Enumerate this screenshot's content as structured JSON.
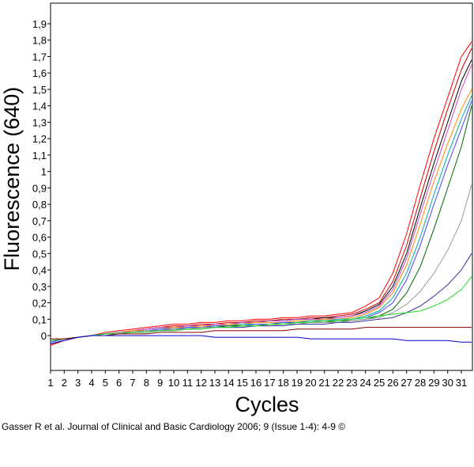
{
  "citation": "Gasser R et al. Journal of Clinical and Basic Cardiology 2006; 9 (Issue 1-4): 4-9 ©",
  "chart_data": {
    "type": "line",
    "title": "",
    "xlabel": "Cycles",
    "ylabel": "Fluorescence (640)",
    "xlim": [
      1,
      32
    ],
    "ylim": [
      -0.2,
      2.0
    ],
    "x": [
      1,
      2,
      3,
      4,
      5,
      6,
      7,
      8,
      9,
      10,
      11,
      12,
      13,
      14,
      15,
      16,
      17,
      18,
      19,
      20,
      21,
      22,
      23,
      24,
      25,
      26,
      27,
      28,
      29,
      30,
      31,
      32
    ],
    "xtick_labels": [
      "1",
      "2",
      "3",
      "4",
      "5",
      "6",
      "7",
      "8",
      "9",
      "10",
      "11",
      "12",
      "13",
      "14",
      "15",
      "16",
      "17",
      "18",
      "19",
      "20",
      "21",
      "22",
      "23",
      "24",
      "25",
      "26",
      "27",
      "28",
      "29",
      "30",
      "31"
    ],
    "ytick_labels": [
      "0",
      "0,1",
      "0,2",
      "0,3",
      "0,4",
      "0,5",
      "0,6",
      "0,7",
      "0,8",
      "0,9",
      "1",
      "1,1",
      "1,2",
      "1,3",
      "1,4",
      "1,5",
      "1,6",
      "1,7",
      "1,8",
      "1,9"
    ],
    "ytick_values": [
      0,
      0.1,
      0.2,
      0.3,
      0.4,
      0.5,
      0.6,
      0.7,
      0.8,
      0.9,
      1.0,
      1.1,
      1.2,
      1.3,
      1.4,
      1.5,
      1.6,
      1.7,
      1.8,
      1.9
    ],
    "grid": false,
    "legend": "none",
    "series": [
      {
        "color": "#ff0000",
        "values": [
          -0.06,
          -0.03,
          -0.01,
          0.0,
          0.02,
          0.03,
          0.04,
          0.05,
          0.06,
          0.07,
          0.07,
          0.08,
          0.08,
          0.09,
          0.09,
          0.1,
          0.1,
          0.11,
          0.11,
          0.12,
          0.12,
          0.13,
          0.14,
          0.18,
          0.23,
          0.38,
          0.62,
          0.92,
          1.2,
          1.45,
          1.7,
          1.79
        ]
      },
      {
        "color": "#cc0000",
        "values": [
          -0.05,
          -0.03,
          -0.01,
          0.0,
          0.01,
          0.02,
          0.03,
          0.04,
          0.05,
          0.06,
          0.06,
          0.07,
          0.07,
          0.08,
          0.08,
          0.09,
          0.09,
          0.1,
          0.1,
          0.11,
          0.11,
          0.12,
          0.13,
          0.16,
          0.2,
          0.33,
          0.55,
          0.84,
          1.12,
          1.38,
          1.62,
          1.75
        ]
      },
      {
        "color": "#000000",
        "values": [
          -0.05,
          -0.03,
          -0.01,
          0.0,
          0.01,
          0.02,
          0.03,
          0.04,
          0.05,
          0.05,
          0.06,
          0.06,
          0.07,
          0.07,
          0.08,
          0.08,
          0.09,
          0.09,
          0.1,
          0.1,
          0.11,
          0.11,
          0.12,
          0.15,
          0.19,
          0.3,
          0.5,
          0.78,
          1.05,
          1.3,
          1.55,
          1.68
        ]
      },
      {
        "color": "#cc44cc",
        "values": [
          -0.04,
          -0.02,
          -0.01,
          0.0,
          0.01,
          0.02,
          0.03,
          0.04,
          0.05,
          0.05,
          0.06,
          0.06,
          0.07,
          0.07,
          0.08,
          0.08,
          0.09,
          0.09,
          0.1,
          0.1,
          0.1,
          0.11,
          0.12,
          0.14,
          0.18,
          0.28,
          0.47,
          0.74,
          1.0,
          1.25,
          1.5,
          1.65
        ]
      },
      {
        "color": "#ff8800",
        "values": [
          -0.04,
          -0.02,
          -0.01,
          0.0,
          0.01,
          0.02,
          0.03,
          0.03,
          0.04,
          0.05,
          0.05,
          0.06,
          0.06,
          0.07,
          0.07,
          0.08,
          0.08,
          0.08,
          0.09,
          0.09,
          0.1,
          0.1,
          0.11,
          0.13,
          0.17,
          0.26,
          0.43,
          0.68,
          0.94,
          1.17,
          1.38,
          1.5
        ]
      },
      {
        "color": "#00aaaa",
        "values": [
          -0.04,
          -0.02,
          -0.01,
          0.0,
          0.01,
          0.02,
          0.02,
          0.03,
          0.04,
          0.04,
          0.05,
          0.05,
          0.06,
          0.06,
          0.07,
          0.07,
          0.07,
          0.08,
          0.08,
          0.09,
          0.09,
          0.1,
          0.1,
          0.12,
          0.15,
          0.23,
          0.38,
          0.6,
          0.86,
          1.1,
          1.32,
          1.46
        ]
      },
      {
        "color": "#4444ff",
        "values": [
          -0.04,
          -0.02,
          -0.01,
          0.0,
          0.01,
          0.02,
          0.02,
          0.03,
          0.04,
          0.04,
          0.05,
          0.05,
          0.06,
          0.06,
          0.06,
          0.07,
          0.07,
          0.08,
          0.08,
          0.08,
          0.09,
          0.09,
          0.1,
          0.11,
          0.14,
          0.2,
          0.34,
          0.55,
          0.8,
          1.04,
          1.26,
          1.43
        ]
      },
      {
        "color": "#006600",
        "values": [
          -0.03,
          -0.02,
          -0.01,
          0.0,
          0.01,
          0.02,
          0.02,
          0.03,
          0.03,
          0.04,
          0.04,
          0.05,
          0.05,
          0.06,
          0.06,
          0.06,
          0.07,
          0.07,
          0.08,
          0.08,
          0.08,
          0.09,
          0.09,
          0.1,
          0.12,
          0.16,
          0.26,
          0.42,
          0.65,
          0.9,
          1.15,
          1.4
        ]
      },
      {
        "color": "#999999",
        "values": [
          -0.03,
          -0.02,
          -0.01,
          0.0,
          0.01,
          0.02,
          0.02,
          0.03,
          0.03,
          0.04,
          0.04,
          0.05,
          0.05,
          0.05,
          0.06,
          0.06,
          0.06,
          0.07,
          0.07,
          0.08,
          0.08,
          0.08,
          0.09,
          0.1,
          0.11,
          0.14,
          0.19,
          0.27,
          0.38,
          0.52,
          0.7,
          0.92
        ]
      },
      {
        "color": "#333399",
        "values": [
          -0.03,
          -0.02,
          -0.01,
          0.0,
          0.01,
          0.01,
          0.02,
          0.02,
          0.03,
          0.03,
          0.04,
          0.04,
          0.05,
          0.05,
          0.05,
          0.06,
          0.06,
          0.06,
          0.07,
          0.07,
          0.07,
          0.08,
          0.08,
          0.09,
          0.1,
          0.11,
          0.14,
          0.18,
          0.24,
          0.31,
          0.4,
          0.5
        ]
      },
      {
        "color": "#22dd22",
        "values": [
          -0.03,
          -0.02,
          -0.01,
          0.0,
          0.01,
          0.01,
          0.02,
          0.02,
          0.03,
          0.03,
          0.04,
          0.04,
          0.05,
          0.05,
          0.06,
          0.06,
          0.07,
          0.07,
          0.08,
          0.08,
          0.09,
          0.09,
          0.1,
          0.11,
          0.12,
          0.13,
          0.14,
          0.15,
          0.18,
          0.22,
          0.28,
          0.36
        ]
      },
      {
        "color": "#880000",
        "values": [
          -0.02,
          -0.02,
          -0.01,
          0.0,
          0.0,
          0.01,
          0.01,
          0.01,
          0.02,
          0.02,
          0.02,
          0.02,
          0.03,
          0.03,
          0.03,
          0.03,
          0.03,
          0.03,
          0.04,
          0.04,
          0.04,
          0.04,
          0.04,
          0.05,
          0.05,
          0.05,
          0.05,
          0.05,
          0.05,
          0.05,
          0.05,
          0.05
        ]
      },
      {
        "color": "#0000cc",
        "values": [
          -0.05,
          -0.03,
          -0.01,
          0.0,
          0.0,
          0.0,
          0.0,
          0.0,
          0.0,
          0.0,
          0.0,
          0.0,
          -0.01,
          -0.01,
          -0.01,
          -0.01,
          -0.01,
          -0.01,
          -0.01,
          -0.02,
          -0.02,
          -0.02,
          -0.02,
          -0.02,
          -0.02,
          -0.02,
          -0.03,
          -0.03,
          -0.03,
          -0.03,
          -0.04,
          -0.04
        ]
      }
    ]
  }
}
